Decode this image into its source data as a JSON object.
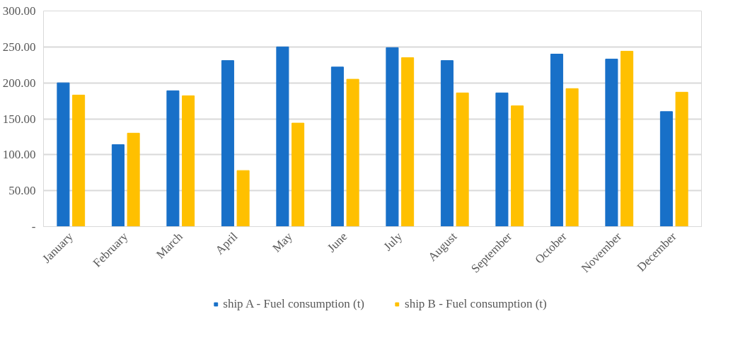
{
  "chart_data": {
    "type": "bar",
    "categories": [
      "January",
      "February",
      "March",
      "April",
      "May",
      "June",
      "July",
      "August",
      "September",
      "October",
      "November",
      "December"
    ],
    "series": [
      {
        "name": "ship A - Fuel consumption (t)",
        "color": "#1870c8",
        "values": [
          200,
          114,
          189,
          231,
          250,
          222,
          249,
          231,
          186,
          240,
          233,
          160
        ]
      },
      {
        "name": "ship B - Fuel consumption (t)",
        "color": "#ffc000",
        "values": [
          183,
          130,
          182,
          78,
          144,
          205,
          235,
          186,
          168,
          192,
          244,
          187
        ]
      }
    ],
    "ylim": [
      0,
      300
    ],
    "yticks": [
      {
        "value": 0,
        "label": "-"
      },
      {
        "value": 50,
        "label": "50.00"
      },
      {
        "value": 100,
        "label": "100.00"
      },
      {
        "value": 150,
        "label": "150.00"
      },
      {
        "value": 200,
        "label": "200.00"
      },
      {
        "value": 250,
        "label": "250.00"
      },
      {
        "value": 300,
        "label": "300.00"
      }
    ],
    "grid": "y",
    "legend": "bottom"
  }
}
